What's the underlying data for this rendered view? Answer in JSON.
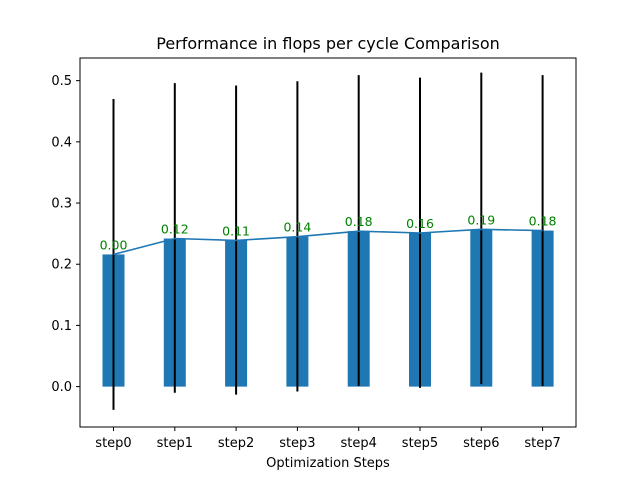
{
  "chart_data": {
    "type": "bar",
    "title": "Performance in flops per cycle Comparison",
    "xlabel": "Optimization Steps",
    "ylabel": "",
    "categories": [
      "step0",
      "step1",
      "step2",
      "step3",
      "step4",
      "step5",
      "step6",
      "step7"
    ],
    "values": [
      0.216,
      0.242,
      0.239,
      0.245,
      0.254,
      0.251,
      0.257,
      0.255
    ],
    "error_low": [
      -0.038,
      -0.01,
      -0.013,
      -0.008,
      0.001,
      -0.002,
      0.004,
      0.001
    ],
    "error_high": [
      0.47,
      0.496,
      0.492,
      0.499,
      0.509,
      0.505,
      0.513,
      0.509
    ],
    "line_values": [
      0.216,
      0.242,
      0.239,
      0.245,
      0.254,
      0.251,
      0.257,
      0.255
    ],
    "data_labels": [
      "0.00",
      "0.12",
      "0.11",
      "0.14",
      "0.18",
      "0.16",
      "0.19",
      "0.18"
    ],
    "yticks": [
      0.0,
      0.1,
      0.2,
      0.3,
      0.4,
      0.5
    ],
    "ytick_labels": [
      "0.0",
      "0.1",
      "0.2",
      "0.3",
      "0.4",
      "0.5"
    ],
    "ylim": [
      -0.066,
      0.537
    ],
    "grid": false,
    "colors": {
      "bar": "#1f77b4",
      "line": "#1f77b4",
      "error": "#000000",
      "data_label": "#008000"
    }
  }
}
